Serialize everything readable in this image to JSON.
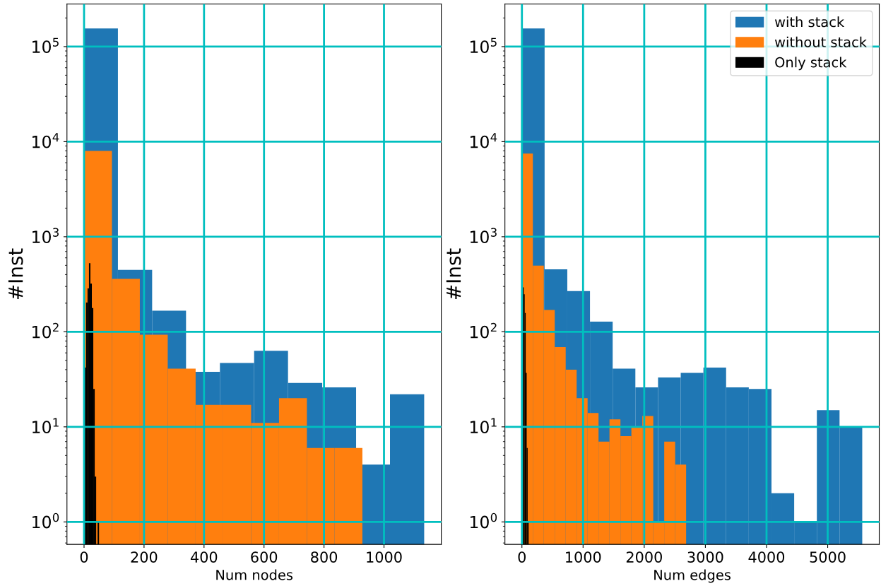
{
  "chart_data": [
    {
      "type": "histogram",
      "xlabel": "Num nodes",
      "ylabel": "#Inst",
      "log": "y",
      "grid": true,
      "legend": false,
      "xlim": [
        -57,
        1191
      ],
      "xticks": [
        0,
        200,
        400,
        600,
        800,
        1000
      ],
      "ylim": [
        0.58,
        280000
      ],
      "yticks": [
        {
          "value": 1,
          "label": "10$^{0}$"
        },
        {
          "value": 10,
          "label": "10$^{1}$"
        },
        {
          "value": 100,
          "label": "10$^{2}$"
        },
        {
          "value": 1000,
          "label": "10$^{3}$"
        },
        {
          "value": 10000,
          "label": "10$^{4}$"
        },
        {
          "value": 100000,
          "label": "10$^{5}$"
        }
      ],
      "bins": [
        0,
        113,
        227,
        340,
        453,
        567,
        680,
        794,
        907,
        1020,
        1134
      ],
      "series": [
        {
          "color": "#1f77b4",
          "values": [
            155000,
            448,
            167,
            38,
            47,
            63,
            29,
            26,
            4,
            22
          ]
        },
        {
          "color": "#ff7f0e",
          "bins": [
            0,
            93,
            186,
            279,
            372,
            464,
            557,
            650,
            743,
            835,
            928
          ],
          "values": [
            8000,
            361,
            93,
            41,
            17,
            17,
            11,
            20,
            6,
            6
          ]
        },
        {
          "color": "#000000",
          "bins": [
            2,
            6.8,
            11.6,
            16.4,
            21.2,
            26,
            30.8,
            35.6,
            40.4,
            45.2,
            50
          ],
          "values": [
            42,
            203,
            286,
            527,
            321,
            178,
            25,
            3,
            null,
            1
          ]
        }
      ]
    },
    {
      "type": "histogram",
      "xlabel": "Num edges",
      "ylabel": "#Inst",
      "log": "y",
      "grid": true,
      "legend": "top right",
      "xlim": [
        -278,
        5843
      ],
      "xticks": [
        0,
        1000,
        2000,
        3000,
        4000,
        5000
      ],
      "ylim": [
        0.58,
        280000
      ],
      "yticks": [
        {
          "value": 1,
          "label": "10$^{0}$"
        },
        {
          "value": 10,
          "label": "10$^{1}$"
        },
        {
          "value": 100,
          "label": "10$^{2}$"
        },
        {
          "value": 1000,
          "label": "10$^{3}$"
        },
        {
          "value": 10000,
          "label": "10$^{4}$"
        },
        {
          "value": 100000,
          "label": "10$^{5}$"
        }
      ],
      "bins": [
        0,
        371,
        742,
        1113,
        1484,
        1855,
        2226,
        2597,
        2968,
        3339,
        3710,
        4081,
        4452,
        4823,
        5194,
        5565
      ],
      "series": [
        {
          "name": "with stack",
          "color": "#1f77b4",
          "values": [
            155000,
            455,
            268,
            128,
            41,
            26,
            33,
            37,
            42,
            26,
            25,
            2,
            1,
            15,
            10
          ]
        },
        {
          "name": "without stack",
          "color": "#ff7f0e",
          "bins": [
            0,
            179,
            358,
            537,
            716,
            895,
            1074,
            1253,
            1432,
            1611,
            1790,
            1969,
            2148,
            2327,
            2506,
            2685
          ],
          "values": [
            7500,
            497,
            170,
            69,
            40,
            20,
            14,
            7,
            12,
            8,
            10,
            13,
            1,
            7,
            4
          ]
        },
        {
          "name": "Only stack",
          "color": "#000000",
          "bins": [
            14,
            30,
            46,
            62,
            78,
            94,
            110
          ],
          "values": [
            294,
            248,
            158,
            37,
            6,
            1
          ]
        }
      ]
    }
  ]
}
